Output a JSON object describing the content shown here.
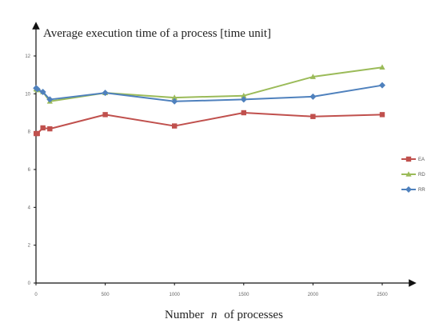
{
  "chart_data": {
    "type": "line",
    "ylabel": "Average execution time of a process [time unit]",
    "xlabel": {
      "prefix": "Number",
      "variable": "n",
      "suffix": "of processes"
    },
    "xlim": [
      0,
      2500
    ],
    "ylim": [
      0,
      12
    ],
    "x_ticks": [
      0,
      500,
      1000,
      1500,
      2000,
      2500
    ],
    "y_ticks": [
      0,
      2,
      4,
      6,
      8,
      10,
      12
    ],
    "grid": false,
    "legend_position": "right",
    "series": [
      {
        "name": "EA",
        "color": "#c0504d",
        "marker": "square",
        "x": [
          1,
          10,
          50,
          100,
          500,
          1000,
          1500,
          2000,
          2500
        ],
        "y": [
          7.9,
          7.9,
          8.2,
          8.15,
          8.9,
          8.3,
          9.0,
          8.8,
          8.9
        ]
      },
      {
        "name": "RD",
        "color": "#9bbb59",
        "marker": "triangle",
        "x": [
          1,
          10,
          50,
          100,
          500,
          1000,
          1500,
          2000,
          2500
        ],
        "y": [
          10.25,
          10.2,
          10.1,
          9.6,
          10.05,
          9.8,
          9.9,
          10.9,
          11.4
        ]
      },
      {
        "name": "RR",
        "color": "#4f81bd",
        "marker": "diamond",
        "x": [
          1,
          10,
          50,
          100,
          500,
          1000,
          1500,
          2000,
          2500
        ],
        "y": [
          10.3,
          10.25,
          10.1,
          9.7,
          10.05,
          9.6,
          9.7,
          9.85,
          10.45
        ]
      }
    ]
  }
}
